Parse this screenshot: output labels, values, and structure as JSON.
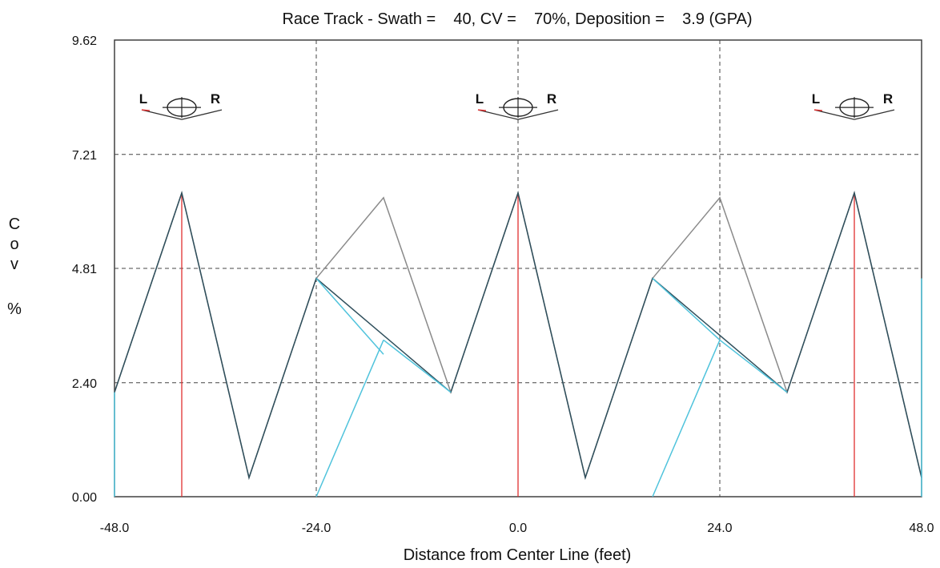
{
  "chart_data": {
    "type": "line",
    "title": "Race Track - Swath =    40, CV =    70%, Deposition =    3.9 (GPA)",
    "xlabel": "Distance from Center Line (feet)",
    "ylabel_chars": [
      "C",
      "o",
      "v",
      "%"
    ],
    "xlim": [
      -48,
      48
    ],
    "ylim": [
      0,
      9.62
    ],
    "x_ticks": [
      {
        "value": -48,
        "label": "-48.0"
      },
      {
        "value": -24,
        "label": "-24.0"
      },
      {
        "value": 0,
        "label": "0.0"
      },
      {
        "value": 24,
        "label": "24.0"
      },
      {
        "value": 48,
        "label": "48.0"
      }
    ],
    "y_ticks": [
      {
        "value": 0,
        "label": "0.00"
      },
      {
        "value": 2.4,
        "label": "2.40"
      },
      {
        "value": 4.81,
        "label": "4.81"
      },
      {
        "value": 7.21,
        "label": "7.21"
      },
      {
        "value": 9.62,
        "label": "9.62"
      }
    ],
    "grid": "dashed at inner ticks",
    "series": [
      {
        "color": "#8a8a8a",
        "x": [
          -48,
          -40,
          -32,
          -24,
          -16,
          -8,
          0,
          8,
          16,
          24,
          32,
          40,
          48
        ],
        "y": [
          2.2,
          6.4,
          0.4,
          4.6,
          6.3,
          2.2,
          6.4,
          0.4,
          4.6,
          6.3,
          2.2,
          6.4,
          0.4
        ]
      },
      {
        "color": "#2f4f5c",
        "x": [
          -48,
          -40,
          -32,
          -24,
          -8,
          0,
          8,
          16,
          32,
          40,
          48
        ],
        "y": [
          2.2,
          6.4,
          0.4,
          4.6,
          2.2,
          6.4,
          0.4,
          4.6,
          2.2,
          6.4,
          0.4
        ]
      },
      {
        "color": "#4fc3dc",
        "segments": [
          {
            "x": [
              -48,
              -48
            ],
            "y": [
              0,
              2.2
            ]
          },
          {
            "x": [
              -24,
              -16
            ],
            "y": [
              4.6,
              3.0
            ]
          },
          {
            "x": [
              -24,
              -16
            ],
            "y": [
              0,
              3.3
            ]
          },
          {
            "x": [
              -16,
              -8
            ],
            "y": [
              3.3,
              2.2
            ]
          },
          {
            "x": [
              16,
              24
            ],
            "y": [
              4.6,
              3.3
            ]
          },
          {
            "x": [
              24,
              32
            ],
            "y": [
              3.3,
              2.2
            ]
          },
          {
            "x": [
              16,
              24
            ],
            "y": [
              0,
              3.3
            ]
          },
          {
            "x": [
              48,
              48
            ],
            "y": [
              0,
              4.6
            ]
          }
        ]
      }
    ],
    "vertical_markers": {
      "color": "#e03030",
      "x": [
        -40,
        0,
        40
      ],
      "y_top": 6.4
    },
    "sprayer_markers": {
      "x": [
        -40,
        0,
        40
      ],
      "y": 8.2,
      "left_label": "L",
      "right_label": "R"
    }
  }
}
